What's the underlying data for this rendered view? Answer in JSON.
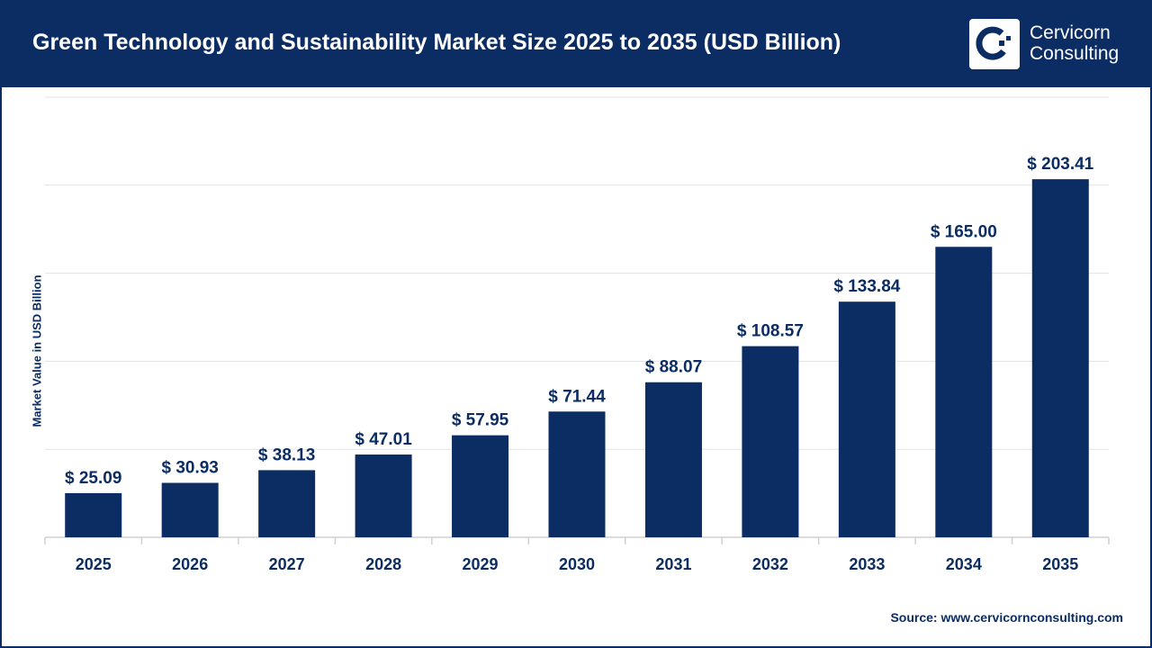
{
  "header": {
    "title": "Green Technology and Sustainability Market Size 2025 to 2035 (USD Billion)"
  },
  "logo": {
    "line1": "Cervicorn",
    "line2": "Consulting"
  },
  "source": "Source: www.cervicornconsulting.com",
  "colors": {
    "bar": "#0b2d63",
    "header": "#0b2d63",
    "grid": "#e3e3e3"
  },
  "chart_data": {
    "type": "bar",
    "title": "Green Technology and Sustainability Market Size 2025 to 2035 (USD Billion)",
    "xlabel": "",
    "ylabel": "Market Value in USD Billion",
    "ylim": [
      0,
      250
    ],
    "grid": true,
    "categories": [
      "2025",
      "2026",
      "2027",
      "2028",
      "2029",
      "2030",
      "2031",
      "2032",
      "2033",
      "2034",
      "2035"
    ],
    "values": [
      25.09,
      30.93,
      38.13,
      47.01,
      57.95,
      71.44,
      88.07,
      108.57,
      133.84,
      165.0,
      203.41
    ],
    "labels": [
      "$ 25.09",
      "$ 30.93",
      "$ 38.13",
      "$ 47.01",
      "$ 57.95",
      "$ 71.44",
      "$ 88.07",
      "$ 108.57",
      "$ 133.84",
      "$ 165.00",
      "$ 203.41"
    ]
  }
}
